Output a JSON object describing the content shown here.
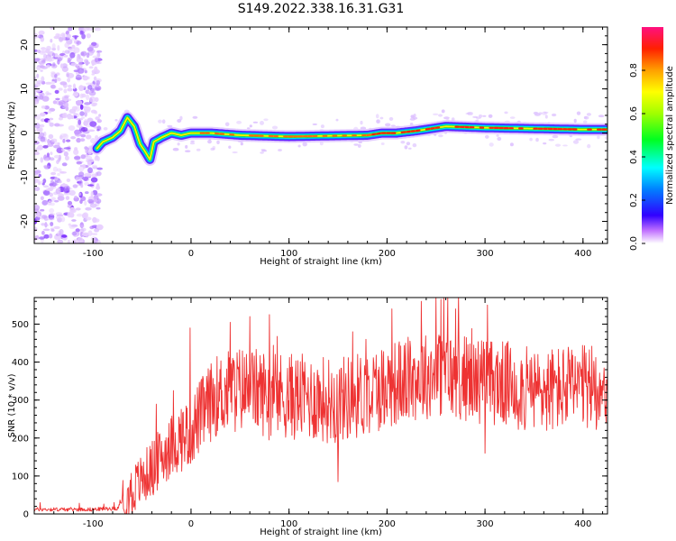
{
  "title": "S149.2022.338.16.31.G31",
  "chart_data": [
    {
      "type": "heatmap",
      "title": "",
      "xlabel": "Height of straight line (km)",
      "ylabel": "Frequency (Hz)",
      "xlim": [
        -160,
        425
      ],
      "ylim": [
        -25,
        24
      ],
      "xticks": [
        -100,
        0,
        100,
        200,
        300,
        400
      ],
      "xtick_labels": [
        "-100",
        "0",
        "100",
        "200",
        "300",
        "400"
      ],
      "yticks": [
        -20,
        -10,
        0,
        10,
        20
      ],
      "ytick_labels": [
        "-20",
        "-10",
        "0",
        "10",
        "20"
      ],
      "frequency_track": {
        "x": [
          -96,
          -90,
          -80,
          -72,
          -65,
          -58,
          -52,
          -46,
          -42,
          -38,
          -30,
          -20,
          -10,
          0,
          20,
          50,
          100,
          150,
          180,
          195,
          210,
          230,
          260,
          300,
          350,
          400,
          425
        ],
        "freq": [
          -3.5,
          -2,
          -1,
          0.5,
          3.5,
          1.5,
          -2.5,
          -4.5,
          -6,
          -2,
          -1,
          0,
          -0.5,
          0,
          0,
          -0.5,
          -0.8,
          -0.6,
          -0.5,
          0,
          0,
          0.5,
          1.5,
          1.2,
          1,
          0.8,
          0.8
        ]
      },
      "noise_region_x": [
        -160,
        -93
      ],
      "colorbar": {
        "label": "Normalized spectral amplitude",
        "range": [
          0,
          1
        ],
        "ticks": [
          0,
          0.2,
          0.4,
          0.6,
          0.8
        ],
        "tick_labels": [
          "0.0",
          "0.2",
          "0.4",
          "0.6",
          "0.8"
        ]
      }
    },
    {
      "type": "line",
      "title": "",
      "xlabel": "Height of straight line (km)",
      "ylabel": "SNR (10 * v/v)",
      "xlim": [
        -160,
        425
      ],
      "ylim": [
        0,
        570
      ],
      "xticks": [
        -100,
        0,
        100,
        200,
        300,
        400
      ],
      "xtick_labels": [
        "-100",
        "0",
        "100",
        "200",
        "300",
        "400"
      ],
      "yticks": [
        0,
        100,
        200,
        300,
        400,
        500
      ],
      "ytick_labels": [
        "0",
        "100",
        "200",
        "300",
        "400",
        "500"
      ],
      "series_color": "#ee3333",
      "envelope": {
        "x": [
          -160,
          -100,
          -75,
          -65,
          -50,
          -40,
          -30,
          -20,
          -10,
          0,
          10,
          25,
          50,
          75,
          100,
          125,
          150,
          175,
          200,
          225,
          250,
          275,
          300,
          325,
          350,
          375,
          400,
          425
        ],
        "y": [
          12,
          12,
          15,
          50,
          90,
          120,
          150,
          180,
          200,
          220,
          260,
          310,
          330,
          320,
          310,
          305,
          300,
          315,
          340,
          355,
          370,
          360,
          350,
          340,
          320,
          330,
          330,
          340
        ]
      },
      "notable_points": {
        "x": [
          -60,
          -1,
          40,
          60,
          80,
          150,
          165,
          205,
          235,
          250,
          255,
          258,
          262,
          270,
          300
        ],
        "y": [
          -2,
          490,
          505,
          520,
          525,
          85,
          480,
          540,
          560,
          570,
          565,
          568,
          570,
          540,
          160
        ]
      }
    }
  ]
}
